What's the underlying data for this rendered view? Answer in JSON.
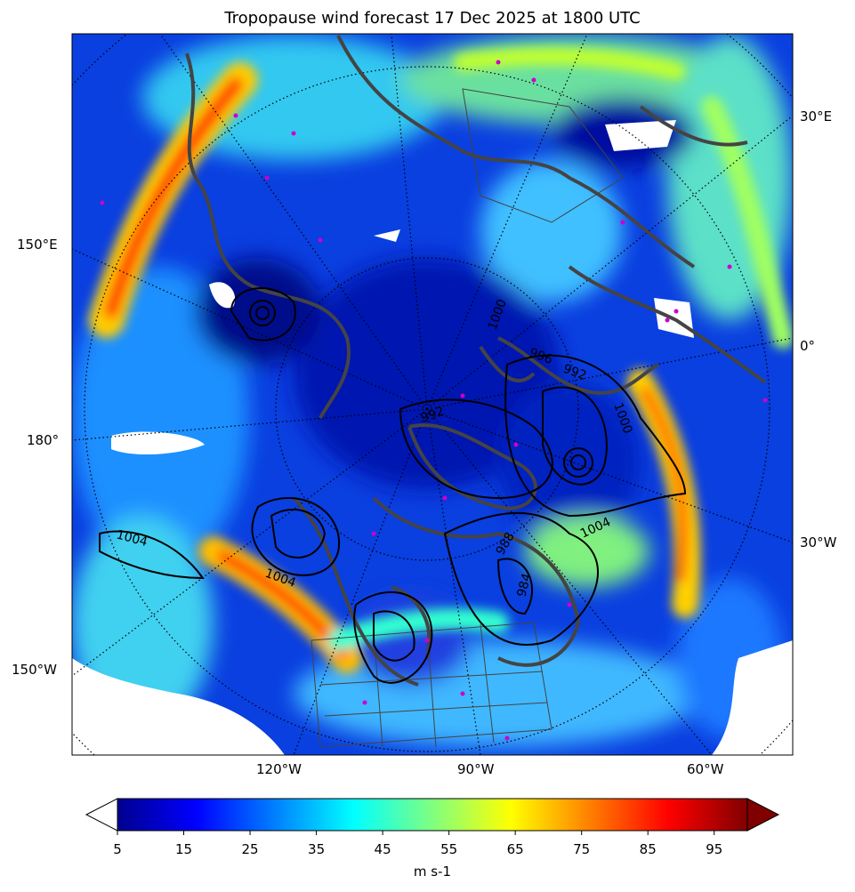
{
  "title": "Tropopause wind forecast 17 Dec 2025 at 1800 UTC",
  "map": {
    "projection": "north polar stereographic",
    "left_labels": [
      "150°E",
      "180°",
      "150°W"
    ],
    "right_labels": [
      "30°E",
      "0°",
      "30°W"
    ],
    "bottom_labels": [
      "120°W",
      "90°W",
      "60°W"
    ],
    "contour_labels": [
      "1004",
      "1004",
      "1004",
      "996",
      "992",
      "992",
      "1000",
      "1000",
      "988",
      "984"
    ],
    "colors": {
      "coastline": "#444444",
      "contour": "#000000",
      "station_marker": "#cc00cc",
      "graticule": "#000000"
    }
  },
  "colorbar": {
    "min": 5,
    "max": 100,
    "ticks": [
      "5",
      "15",
      "25",
      "35",
      "45",
      "55",
      "65",
      "75",
      "85",
      "95"
    ],
    "label": "m s-1",
    "colormap": "jet",
    "extend": "both",
    "under_color": "#ffffff",
    "over_color": "#800000"
  }
}
